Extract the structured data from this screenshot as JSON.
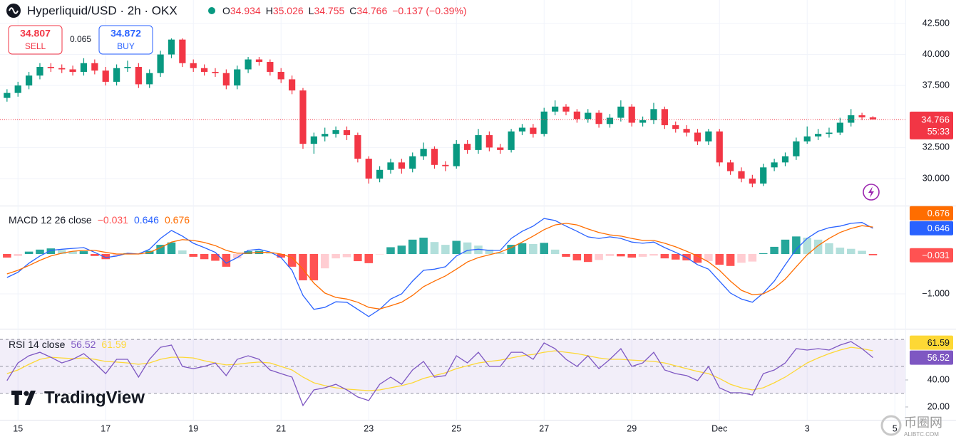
{
  "chart_data": {
    "type": "candlestick",
    "title": "Hyperliquid/USD · 2h · OKX",
    "ohlc_labels": [
      "O",
      "H",
      "L",
      "C"
    ],
    "change_label": "−0.137 (−0.39%)",
    "countdown": "55:33",
    "up_color": "#089981",
    "down_color": "#f23645",
    "grid": true,
    "xlim": [
      14.59,
      35.24
    ],
    "xticks": [
      15,
      17,
      19,
      21,
      23,
      25,
      27,
      29,
      {
        "value": 31,
        "label": "Dec"
      },
      {
        "value": 33,
        "label": "3"
      },
      {
        "value": 35,
        "label": "5"
      }
    ],
    "ylim": [
      27.82,
      44.39
    ],
    "yticks": [
      {
        "value": 30,
        "label": "30.000"
      },
      {
        "value": 32.5,
        "label": "32.500"
      },
      {
        "value": 37.5,
        "label": "37.500"
      },
      {
        "value": 40,
        "label": "40.000"
      },
      {
        "value": 42.5,
        "label": "42.500"
      }
    ],
    "x": [
      14.75,
      15,
      15.25,
      15.5,
      15.75,
      16,
      16.25,
      16.5,
      16.75,
      17,
      17.25,
      17.5,
      17.75,
      18,
      18.25,
      18.5,
      18.75,
      19,
      19.25,
      19.5,
      19.75,
      20,
      20.25,
      20.5,
      20.75,
      21,
      21.25,
      21.5,
      21.75,
      22,
      22.25,
      22.5,
      22.75,
      23,
      23.25,
      23.5,
      23.75,
      24,
      24.25,
      24.5,
      24.75,
      25,
      25.25,
      25.5,
      25.75,
      26,
      26.25,
      26.5,
      26.75,
      27,
      27.25,
      27.5,
      27.75,
      28,
      28.25,
      28.5,
      28.75,
      29,
      29.25,
      29.5,
      29.75,
      30,
      30.25,
      30.5,
      30.75,
      31,
      31.25,
      31.5,
      31.75,
      32,
      32.25,
      32.5,
      32.75,
      33,
      33.25,
      33.5,
      33.75,
      34,
      34.25,
      34.5
    ],
    "open": [
      36.5,
      36.9,
      37.5,
      38.3,
      39,
      38.9,
      38.8,
      38.6,
      39.3,
      38.7,
      37.8,
      38.9,
      39,
      37.6,
      38.5,
      40,
      41.2,
      39.3,
      38.9,
      38.6,
      38.5,
      37.5,
      38.8,
      39.6,
      39.4,
      38.6,
      38,
      37.1,
      32.8,
      33.4,
      33.6,
      33.9,
      33.5,
      31.6,
      30,
      30.7,
      31.3,
      30.8,
      31.8,
      32.4,
      31.1,
      31,
      32.8,
      32.3,
      33.5,
      32.5,
      32.3,
      33.8,
      34.1,
      33.6,
      35.4,
      35.8,
      35.4,
      34.8,
      35.3,
      34.4,
      34.9,
      35.8,
      34.5,
      34.7,
      35.6,
      34.3,
      34,
      33.7,
      33,
      33.8,
      31.3,
      30.6,
      30,
      29.6,
      30.9,
      31.3,
      31.8,
      33,
      33.4,
      33.6,
      33.7,
      34.5,
      35.1,
      34.934
    ],
    "high": [
      37.2,
      37.8,
      38.6,
      39.3,
      39.3,
      39.2,
      39.1,
      39.7,
      39.6,
      39,
      39.2,
      39.5,
      39.3,
      38.8,
      40.3,
      41.3,
      41.3,
      39.6,
      39.2,
      38.9,
      38.8,
      39.1,
      39.8,
      39.8,
      39.6,
      38.9,
      38.3,
      37.3,
      33.7,
      34.1,
      34.2,
      34.2,
      33.7,
      31.8,
      31,
      31.6,
      31.6,
      32.1,
      32.9,
      32.6,
      31.4,
      33.1,
      33.1,
      34,
      33.8,
      32.8,
      34,
      34.4,
      34.4,
      35.7,
      36.3,
      36,
      35.6,
      35.6,
      35.5,
      35.2,
      36.3,
      36,
      35,
      36.1,
      35.8,
      34.6,
      34.3,
      34,
      34,
      34,
      31.5,
      30.9,
      30.3,
      31.2,
      31.6,
      32.1,
      33.3,
      34.2,
      34,
      34.1,
      34.9,
      35.6,
      35.3,
      35.026
    ],
    "low": [
      36.2,
      36.6,
      37.2,
      38,
      38.6,
      38.5,
      38.3,
      38.3,
      38.4,
      37.5,
      37.5,
      38.6,
      37.3,
      37.3,
      38.2,
      39.7,
      39,
      38.6,
      38.3,
      38.2,
      37.2,
      37.2,
      38.5,
      39.1,
      38.3,
      37.7,
      36.8,
      32.4,
      32,
      33,
      33.3,
      33.1,
      31.3,
      29.6,
      29.7,
      30.4,
      30.4,
      30.5,
      31.5,
      30.8,
      30.6,
      30.8,
      32,
      32,
      32.2,
      32,
      32.1,
      33.5,
      33.3,
      33.4,
      35.1,
      35.1,
      34.5,
      34.5,
      34.1,
      34.1,
      34.6,
      34.2,
      34.2,
      34.4,
      34,
      33.7,
      33.4,
      32.7,
      32.7,
      31,
      30.3,
      29.7,
      29.3,
      29.4,
      30.6,
      31,
      31.5,
      32.8,
      33.1,
      33.3,
      33.5,
      34.2,
      34.7,
      34.755
    ],
    "close": [
      36.9,
      37.5,
      38.3,
      39,
      38.9,
      38.8,
      38.6,
      39.3,
      38.7,
      37.8,
      38.9,
      39,
      37.6,
      38.5,
      40,
      41.2,
      39.3,
      38.9,
      38.6,
      38.5,
      37.5,
      38.8,
      39.6,
      39.4,
      38.6,
      38,
      37.1,
      32.8,
      33.4,
      33.6,
      33.9,
      33.5,
      31.6,
      30,
      30.7,
      31.3,
      30.8,
      31.8,
      32.4,
      31.1,
      31,
      32.8,
      32.3,
      33.5,
      32.5,
      32.3,
      33.8,
      34.1,
      33.6,
      35.4,
      35.8,
      35.4,
      34.8,
      35.3,
      34.4,
      34.9,
      35.8,
      34.5,
      34.7,
      35.6,
      34.3,
      34,
      33.7,
      33,
      33.8,
      31.3,
      30.6,
      30,
      29.6,
      30.9,
      31.3,
      31.8,
      33,
      33.4,
      33.6,
      33.7,
      34.5,
      35.1,
      34.934,
      34.766
    ],
    "panes": [
      {
        "type": "macd",
        "title": "MACD 12 26 close",
        "ylim": [
          -1.875,
          1.196
        ],
        "yticks": [
          {
            "value": -1,
            "label": "−1.000"
          }
        ],
        "series": [
          {
            "colors": [
              "#26a69a",
              "#b2dfdb",
              "#ffcdd2",
              "#ff5252"
            ],
            "last_label": "−0.031",
            "values": [
              -0.09,
              -0.05,
              0.06,
              0.11,
              0.14,
              0.1,
              0.07,
              0.07,
              -0.05,
              -0.13,
              -0.05,
              0.02,
              0,
              0.08,
              0.23,
              0.29,
              0.09,
              -0.07,
              -0.13,
              -0.17,
              -0.32,
              -0.11,
              0.07,
              0.08,
              0.01,
              -0.09,
              -0.32,
              -0.66,
              -0.66,
              -0.36,
              -0.11,
              -0.08,
              -0.18,
              -0.23,
              -0.01,
              0.17,
              0.21,
              0.36,
              0.41,
              0.3,
              0.23,
              0.33,
              0.29,
              0.21,
              0.11,
              0.04,
              0.23,
              0.27,
              0.25,
              0.28,
              0.11,
              -0.07,
              -0.16,
              -0.2,
              -0.15,
              -0.05,
              -0.06,
              -0.09,
              -0.07,
              -0.04,
              -0.11,
              -0.14,
              -0.16,
              -0.22,
              -0.18,
              -0.27,
              -0.3,
              -0.22,
              -0.19,
              0.02,
              0.18,
              0.36,
              0.44,
              0.41,
              0.36,
              0.27,
              0.16,
              0.13,
              0.08,
              -0.031
            ]
          },
          {
            "color": "#2962ff",
            "values": [
              -0.59,
              -0.46,
              -0.23,
              -0.05,
              0.09,
              0.12,
              0.14,
              0.16,
              0.04,
              -0.09,
              -0.05,
              0.02,
              0,
              0.12,
              0.39,
              0.59,
              0.45,
              0.27,
              0.16,
              0.04,
              -0.23,
              -0.09,
              0.09,
              0.12,
              0.05,
              -0.09,
              -0.41,
              -1.04,
              -1.39,
              -1.34,
              -1.2,
              -1.21,
              -1.39,
              -1.57,
              -1.39,
              -1.13,
              -1,
              -0.68,
              -0.41,
              -0.38,
              -0.32,
              -0.05,
              0.09,
              0.12,
              0.09,
              0.09,
              0.39,
              0.57,
              0.7,
              0.89,
              0.84,
              0.7,
              0.57,
              0.43,
              0.39,
              0.43,
              0.39,
              0.3,
              0.27,
              0.3,
              0.16,
              0.04,
              -0.09,
              -0.27,
              -0.38,
              -0.68,
              -0.98,
              -1.13,
              -1.21,
              -0.98,
              -0.68,
              -0.27,
              0.12,
              0.39,
              0.57,
              0.66,
              0.7,
              0.77,
              0.79,
              0.646
            ]
          },
          {
            "color": "#ff6d00",
            "values": [
              -0.5,
              -0.41,
              -0.29,
              -0.16,
              -0.05,
              0.02,
              0.07,
              0.09,
              0.09,
              0.04,
              0,
              0,
              0,
              0.04,
              0.16,
              0.3,
              0.36,
              0.34,
              0.29,
              0.21,
              0.09,
              0.02,
              0.02,
              0.04,
              0.04,
              0,
              -0.09,
              -0.38,
              -0.73,
              -0.98,
              -1.09,
              -1.13,
              -1.21,
              -1.34,
              -1.38,
              -1.3,
              -1.21,
              -1.04,
              -0.82,
              -0.68,
              -0.55,
              -0.38,
              -0.2,
              -0.09,
              -0.02,
              0.05,
              0.16,
              0.3,
              0.45,
              0.61,
              0.73,
              0.77,
              0.73,
              0.63,
              0.54,
              0.48,
              0.45,
              0.39,
              0.34,
              0.34,
              0.27,
              0.18,
              0.07,
              -0.05,
              -0.2,
              -0.41,
              -0.68,
              -0.91,
              -1.02,
              -1,
              -0.86,
              -0.63,
              -0.32,
              -0.02,
              0.21,
              0.39,
              0.54,
              0.64,
              0.71,
              0.676
            ]
          }
        ]
      },
      {
        "type": "rsi",
        "title": "RSI 14 close",
        "ylim": [
          10.5,
          77.4
        ],
        "yticks": [
          {
            "value": 40,
            "label": "40.00"
          },
          {
            "value": 20,
            "label": "20.00"
          }
        ],
        "levels": [
          70,
          50,
          30
        ],
        "band_color": "#7e57c2",
        "series": [
          {
            "color": "#7e57c2",
            "values": [
              39.5,
              52.6,
              57.9,
              60.5,
              56.8,
              52.6,
              55.3,
              59.5,
              52.6,
              44.7,
              55.3,
              55.3,
              42.1,
              55.3,
              64.2,
              65.8,
              50,
              48.4,
              50,
              52.6,
              43.2,
              55.3,
              57.9,
              55.3,
              47.4,
              44.7,
              42.1,
              21.1,
              32.6,
              34.2,
              36.8,
              32.6,
              27.4,
              24.7,
              36.8,
              42.1,
              36.8,
              47.4,
              53.7,
              42.1,
              43.2,
              57.9,
              52.6,
              60.5,
              50,
              50,
              60.5,
              60.5,
              55.3,
              67.4,
              63.2,
              55.3,
              50,
              57.9,
              48.4,
              55.3,
              63.2,
              50,
              52.6,
              60.5,
              47.4,
              44.7,
              43.2,
              39.5,
              50,
              34.2,
              30.5,
              30.5,
              28.9,
              44.7,
              47.4,
              52.6,
              63.2,
              62.1,
              63.2,
              62.1,
              65.8,
              68.4,
              63.2,
              56.52
            ]
          },
          {
            "color": "#fdd835",
            "values": [
              44.7,
              47.4,
              51.6,
              55.3,
              56.8,
              56.3,
              55.8,
              56.3,
              55.3,
              53.7,
              53.2,
              52.6,
              51.6,
              52.6,
              55.3,
              56.8,
              56.8,
              56.3,
              54.2,
              52.6,
              51.1,
              51.6,
              52.6,
              53.2,
              52.6,
              50,
              47.4,
              42.1,
              37.9,
              35.8,
              34.2,
              33.2,
              32.6,
              32.1,
              32.6,
              34.2,
              35.8,
              37.9,
              41.1,
              43.2,
              45.3,
              48.4,
              50.5,
              52.6,
              53.7,
              54.7,
              56.3,
              57.9,
              58.9,
              60.5,
              61.6,
              60.5,
              59.5,
              57.9,
              56.3,
              55.3,
              55.3,
              54.7,
              54.2,
              53.7,
              52.6,
              50.5,
              48.4,
              46.3,
              44.7,
              41.1,
              36.8,
              34.2,
              32.6,
              34.2,
              37.9,
              42.1,
              47.4,
              52.6,
              56.3,
              59.5,
              62.1,
              64.2,
              63.2,
              61.59
            ]
          }
        ]
      }
    ]
  },
  "trade": {
    "sell_price": 34.807,
    "sell_label": "SELL",
    "spread": 0.065,
    "buy_price": 34.872,
    "buy_label": "BUY"
  },
  "brand": "TradingView",
  "watermark": {
    "name": "币圈网",
    "site": "ALIBTC.COM"
  }
}
